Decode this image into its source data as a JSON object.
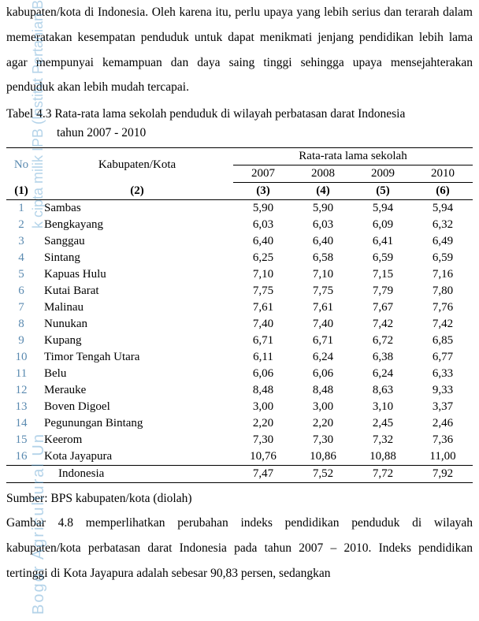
{
  "watermark": {
    "top": "k cipta milik IPB (Institut Pertanian Bogor)",
    "bottom": "Bogor Agricultural Un"
  },
  "paragraph_top": "kabupaten/kota di Indonesia. Oleh karena itu, perlu upaya yang  lebih serius dan terarah dalam memeratakan kesempatan penduduk untuk dapat menikmati jenjang pendidikan lebih lama agar mempunyai kemampuan dan daya saing tinggi sehingga upaya mensejahterakan penduduk akan lebih mudah tercapai.",
  "table_caption_line1": "Tabel 4.3 Rata-rata lama sekolah penduduk di wilayah perbatasan darat Indonesia",
  "table_caption_line2": "tahun 2007 - 2010",
  "table": {
    "headers": {
      "no": "No",
      "kab": "Kabupaten/Kota",
      "group": "Rata-rata lama sekolah",
      "years": [
        "2007",
        "2008",
        "2009",
        "2010"
      ]
    },
    "col_nums": [
      "(1)",
      "(2)",
      "(3)",
      "(4)",
      "(5)",
      "(6)"
    ],
    "rows": [
      {
        "no": "1",
        "kab": "Sambas",
        "v": [
          "5,90",
          "5,90",
          "5,94",
          "5,94"
        ]
      },
      {
        "no": "2",
        "kab": "Bengkayang",
        "v": [
          "6,03",
          "6,03",
          "6,09",
          "6,32"
        ]
      },
      {
        "no": "3",
        "kab": "Sanggau",
        "v": [
          "6,40",
          "6,40",
          "6,41",
          "6,49"
        ]
      },
      {
        "no": "4",
        "kab": "Sintang",
        "v": [
          "6,25",
          "6,58",
          "6,59",
          "6,59"
        ]
      },
      {
        "no": "5",
        "kab": "Kapuas Hulu",
        "v": [
          "7,10",
          "7,10",
          "7,15",
          "7,16"
        ]
      },
      {
        "no": "6",
        "kab": "Kutai Barat",
        "v": [
          "7,75",
          "7,75",
          "7,79",
          "7,80"
        ]
      },
      {
        "no": "7",
        "kab": "Malinau",
        "v": [
          "7,61",
          "7,61",
          "7,67",
          "7,76"
        ]
      },
      {
        "no": "8",
        "kab": "Nunukan",
        "v": [
          "7,40",
          "7,40",
          "7,42",
          "7,42"
        ]
      },
      {
        "no": "9",
        "kab": "Kupang",
        "v": [
          "6,71",
          "6,71",
          "6,72",
          "6,85"
        ]
      },
      {
        "no": "10",
        "kab": "Timor Tengah Utara",
        "v": [
          "6,11",
          "6,24",
          "6,38",
          "6,77"
        ]
      },
      {
        "no": "11",
        "kab": "Belu",
        "v": [
          "6,06",
          "6,06",
          "6,24",
          "6,33"
        ]
      },
      {
        "no": "12",
        "kab": "Merauke",
        "v": [
          "8,48",
          "8,48",
          "8,63",
          "9,33"
        ]
      },
      {
        "no": "13",
        "kab": "Boven Digoel",
        "v": [
          "3,00",
          "3,00",
          "3,10",
          "3,37"
        ]
      },
      {
        "no": "14",
        "kab": "Pegunungan Bintang",
        "v": [
          "2,20",
          "2,20",
          "2,45",
          "2,46"
        ]
      },
      {
        "no": "15",
        "kab": "Keerom",
        "v": [
          "7,30",
          "7,30",
          "7,32",
          "7,36"
        ]
      },
      {
        "no": "16",
        "kab": "Kota Jayapura",
        "v": [
          "10,76",
          "10,86",
          "10,88",
          "11,00"
        ]
      }
    ],
    "totals": {
      "kab": "Indonesia",
      "v": [
        "7,47",
        "7,52",
        "7,72",
        "7,92"
      ]
    }
  },
  "source": "Sumber: BPS kabupaten/kota (diolah)",
  "paragraph_bottom": "Gambar 4.8 memperlihatkan perubahan indeks pendidikan penduduk di wilayah kabupaten/kota perbatasan darat Indonesia pada tahun 2007 – 2010. Indeks pendidikan tertinggi di Kota Jayapura adalah sebesar 90,83 persen, sedangkan"
}
